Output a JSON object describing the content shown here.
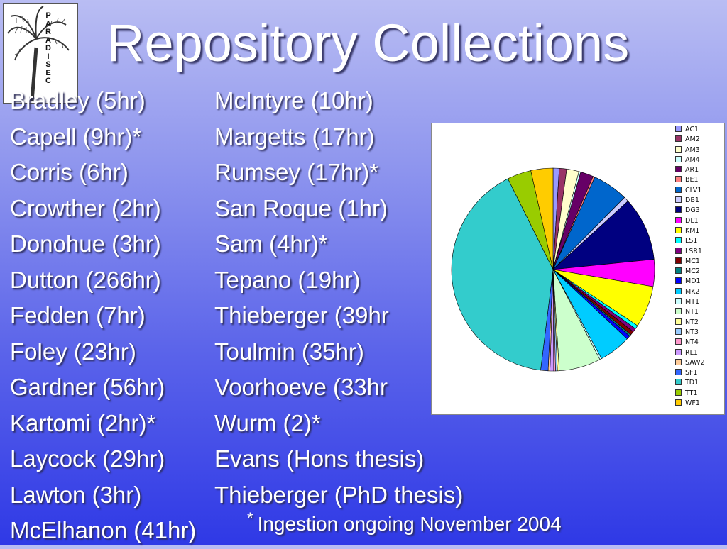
{
  "title": "Repository Collections",
  "logo": {
    "letters": [
      "P",
      "A",
      "R",
      "A",
      "D",
      "I",
      "S",
      "E",
      "C"
    ],
    "name": "palm-tree-logo"
  },
  "collections_left": [
    "Bradley (5hr)",
    "Capell (9hr)*",
    "Corris (6hr)",
    "Crowther (2hr)",
    "Donohue (3hr)",
    "Dutton (266hr)",
    "Fedden (7hr)",
    "Foley (23hr)",
    "Gardner (56hr)",
    "Kartomi (2hr)*",
    "Laycock (29hr)",
    "Lawton (3hr)",
    "McElhanon (41hr)"
  ],
  "collections_right": [
    "McIntyre (10hr)",
    "Margetts (17hr)",
    "Rumsey (17hr)*",
    "San Roque (1hr)",
    "Sam (4hr)*",
    "Tepano (19hr)",
    "Thieberger (39hr",
    "Toulmin (35hr)",
    "Voorhoeve (33hr",
    "Wurm (2)*",
    "Evans (Hons thesis)",
    "Thieberger (PhD thesis)"
  ],
  "footnote": {
    "marker": "*",
    "text": "Ingestion ongoing November 2004"
  },
  "chart_data": {
    "type": "pie",
    "legend_position": "right",
    "slices": [
      {
        "label": "AC1",
        "value": 1.0,
        "color": "#9999ff"
      },
      {
        "label": "AM2",
        "value": 1.2,
        "color": "#993366"
      },
      {
        "label": "AM3",
        "value": 2.0,
        "color": "#ffffcc"
      },
      {
        "label": "AM4",
        "value": 0.3,
        "color": "#ccffff"
      },
      {
        "label": "AR1",
        "value": 2.1,
        "color": "#660066"
      },
      {
        "label": "BE1",
        "value": 0.3,
        "color": "#ff8080"
      },
      {
        "label": "CLV1",
        "value": 5.8,
        "color": "#0066cc"
      },
      {
        "label": "DB1",
        "value": 0.8,
        "color": "#ccccff"
      },
      {
        "label": "DG3",
        "value": 10.4,
        "color": "#000080"
      },
      {
        "label": "DL1",
        "value": 4.4,
        "color": "#ff00ff"
      },
      {
        "label": "KM1",
        "value": 6.8,
        "color": "#ffff00"
      },
      {
        "label": "LS1",
        "value": 0.6,
        "color": "#00ffff"
      },
      {
        "label": "LSR1",
        "value": 0.6,
        "color": "#800080"
      },
      {
        "label": "MC1",
        "value": 0.6,
        "color": "#800000"
      },
      {
        "label": "MC2",
        "value": 0.3,
        "color": "#008080"
      },
      {
        "label": "MD1",
        "value": 0.6,
        "color": "#0000ff"
      },
      {
        "label": "MK2",
        "value": 5.2,
        "color": "#00ccff"
      },
      {
        "label": "MT1",
        "value": 0.3,
        "color": "#ccffff"
      },
      {
        "label": "NT1",
        "value": 6.8,
        "color": "#ccffcc"
      },
      {
        "label": "NT2",
        "value": 0.3,
        "color": "#ffff99"
      },
      {
        "label": "NT3",
        "value": 0.3,
        "color": "#99ccff"
      },
      {
        "label": "NT4",
        "value": 0.3,
        "color": "#ff99cc"
      },
      {
        "label": "RL1",
        "value": 0.6,
        "color": "#cc99ff"
      },
      {
        "label": "SAW2",
        "value": 0.3,
        "color": "#ffcc99"
      },
      {
        "label": "SF1",
        "value": 1.2,
        "color": "#3366ff"
      },
      {
        "label": "TD1",
        "value": 41.6,
        "color": "#33cccc"
      },
      {
        "label": "TT1",
        "value": 3.9,
        "color": "#99cc00"
      },
      {
        "label": "WF1",
        "value": 3.6,
        "color": "#ffcc00"
      }
    ]
  }
}
